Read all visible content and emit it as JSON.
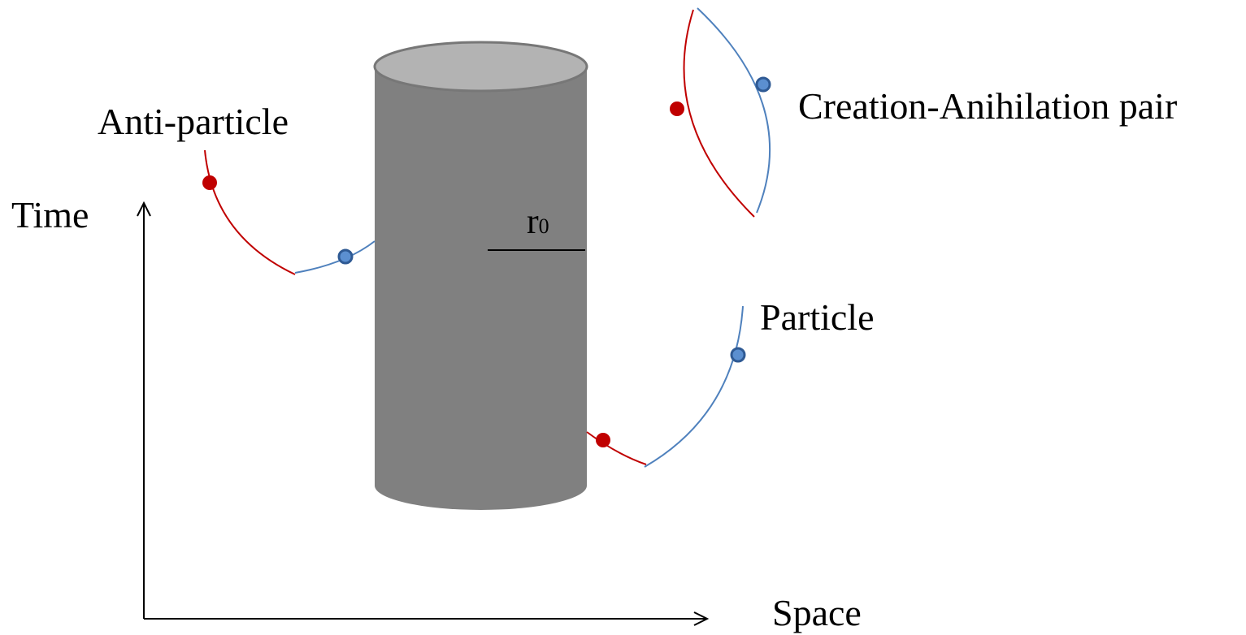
{
  "labels": {
    "anti_particle": "Anti-particle",
    "pair": "Creation-Anihilation pair",
    "particle": "Particle",
    "time_axis": "Time",
    "space_axis": "Space",
    "radius": {
      "base": "r",
      "subscript": "0"
    }
  }
}
